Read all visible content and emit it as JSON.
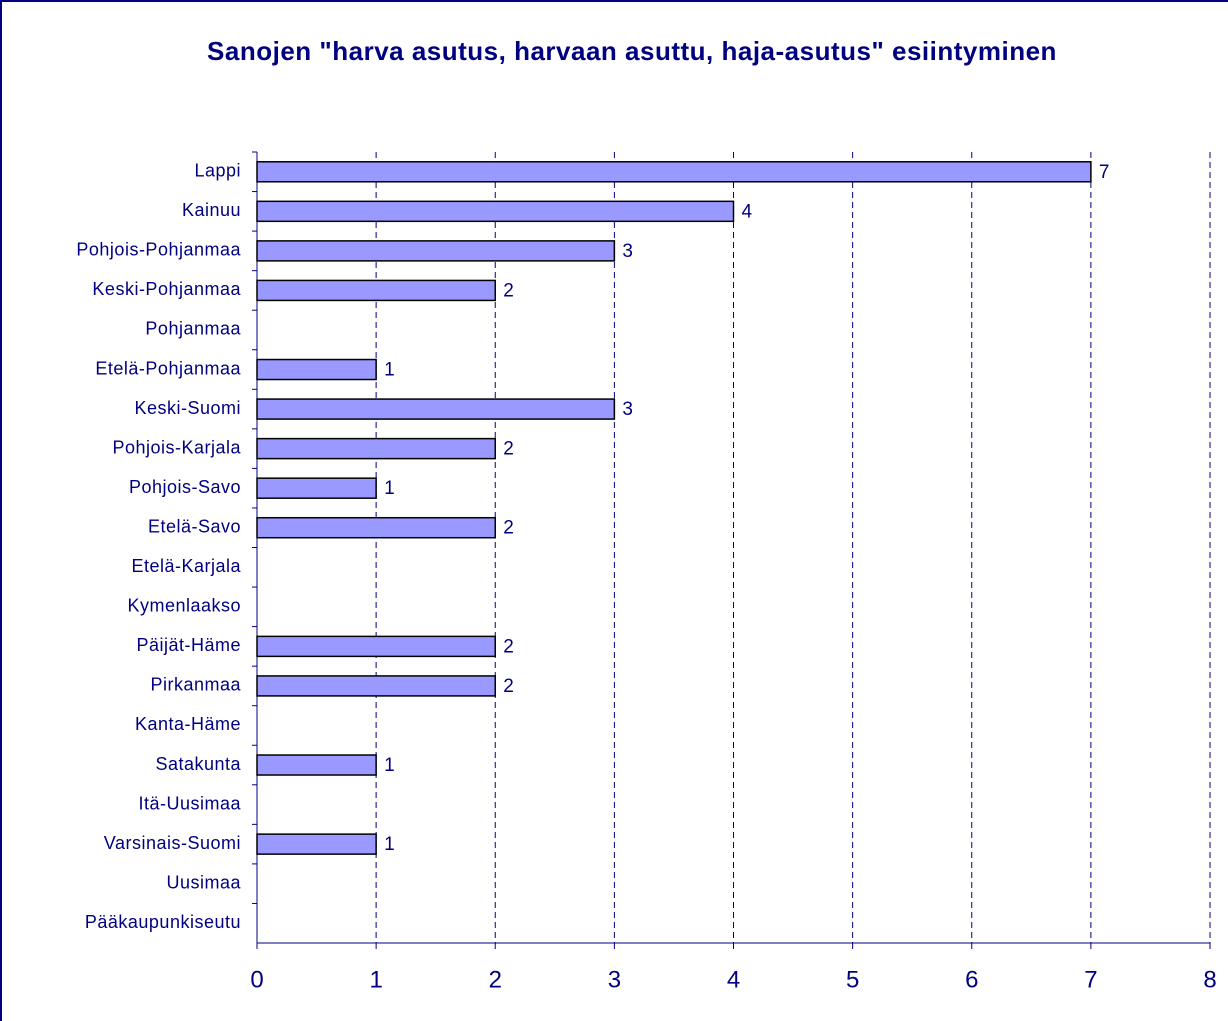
{
  "chart_data": {
    "type": "hbar",
    "title": "Sanojen \"harva asutus, harvaan asuttu, haja-asutus\" esiintyminen",
    "categories": [
      "Lappi",
      "Kainuu",
      "Pohjois-Pohjanmaa",
      "Keski-Pohjanmaa",
      "Pohjanmaa",
      "Etelä-Pohjanmaa",
      "Keski-Suomi",
      "Pohjois-Karjala",
      "Pohjois-Savo",
      "Etelä-Savo",
      "Etelä-Karjala",
      "Kymenlaakso",
      "Päijät-Häme",
      "Pirkanmaa",
      "Kanta-Häme",
      "Satakunta",
      "Itä-Uusimaa",
      "Varsinais-Suomi",
      "Uusimaa",
      "Pääkaupunkiseutu"
    ],
    "values": [
      7,
      4,
      3,
      2,
      null,
      1,
      3,
      2,
      1,
      2,
      null,
      null,
      2,
      2,
      null,
      1,
      null,
      1,
      null,
      null
    ],
    "color": "#9999ff",
    "xlim": [
      0,
      8
    ],
    "xticks": [
      0,
      1,
      2,
      3,
      4,
      5,
      6,
      7,
      8
    ],
    "grid": true
  }
}
